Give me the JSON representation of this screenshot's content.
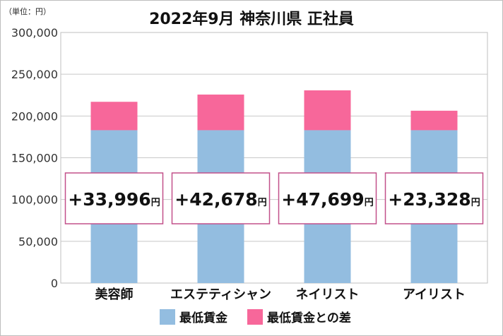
{
  "chart_data": {
    "type": "bar",
    "stacked": true,
    "title": "2022年9月 神奈川県 正社員",
    "unit_label": "（単位：円）",
    "categories": [
      "美容師",
      "エステティシャン",
      "ネイリスト",
      "アイリスト"
    ],
    "series": [
      {
        "name": "最低賃金",
        "color": "#93bde0",
        "values": [
          183000,
          183000,
          183000,
          183000
        ]
      },
      {
        "name": "最低賃金との差",
        "color": "#f7679a",
        "values": [
          33996,
          42678,
          47699,
          23328
        ]
      }
    ],
    "callouts": [
      "+33,996",
      "+42,678",
      "+47,699",
      "+23,328"
    ],
    "callout_unit": "円",
    "callout_border_color": "#c2508a",
    "ylim": [
      0,
      300000
    ],
    "yticks": [
      "0",
      "50,000",
      "100,000",
      "150,000",
      "200,000",
      "250,000",
      "300,000"
    ],
    "grid": true,
    "legend_position": "bottom"
  }
}
